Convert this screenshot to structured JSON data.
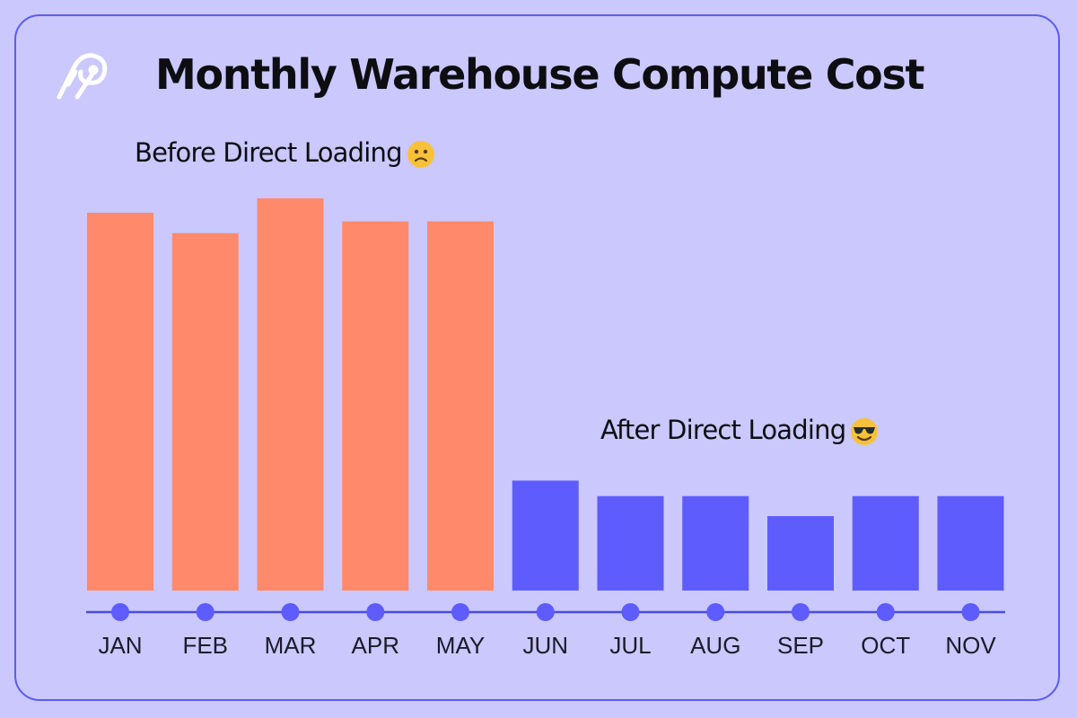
{
  "title": "Monthly Warehouse Compute Cost",
  "annotations": {
    "before": "Before Direct Loading",
    "before_emoji": "slightly-frowning-face-emoji",
    "after": "After Direct Loading",
    "after_emoji": "smiling-face-with-sunglasses-emoji"
  },
  "logo": "airbyte-logo-icon",
  "colors": {
    "background": "#cac8fd",
    "border": "#5b5bf6",
    "before": "#ff8a6b",
    "after": "#5e5cfd",
    "axis": "#4b4be6"
  },
  "chart_data": {
    "type": "bar",
    "categories": [
      "JAN",
      "FEB",
      "MAR",
      "APR",
      "MAY",
      "JUN",
      "JUL",
      "AUG",
      "SEP",
      "OCT",
      "NOV"
    ],
    "values": [
      100,
      94.6,
      103.8,
      97.7,
      97.7,
      29.1,
      25.0,
      25.0,
      19.7,
      25.0,
      25.0
    ],
    "groups": [
      "before",
      "before",
      "before",
      "before",
      "before",
      "after",
      "after",
      "after",
      "after",
      "after",
      "after"
    ],
    "xlabel": "",
    "ylabel": "",
    "yaxis_shown": false,
    "grid": false
  }
}
